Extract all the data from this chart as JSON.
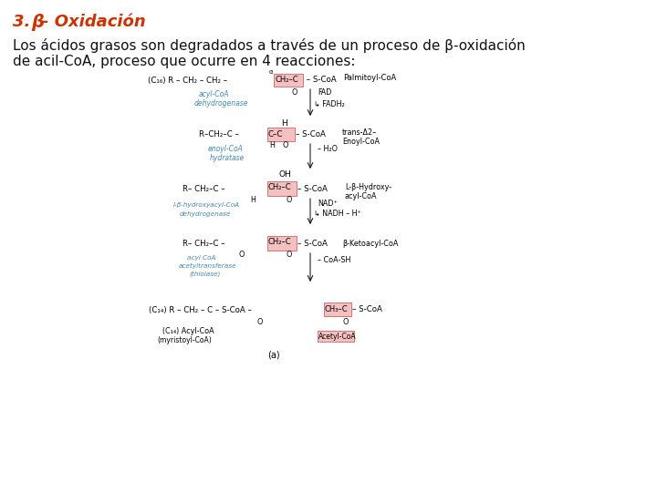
{
  "title_color": "#cc3300",
  "background_color": "#ffffff",
  "enzyme_color": "#4488aa",
  "text_color": "#111111",
  "pink_face": "#f5c0c0",
  "pink_edge": "#cc7777",
  "fig_width": 7.2,
  "fig_height": 5.4,
  "dpi": 100,
  "title": "3. β- Oxidación",
  "body1": "Los ácidos grasos son degradados a través de un proceso de β-oxidación",
  "body2": "de acil-CoA, proceso que ocurre en 4 reacciones:"
}
